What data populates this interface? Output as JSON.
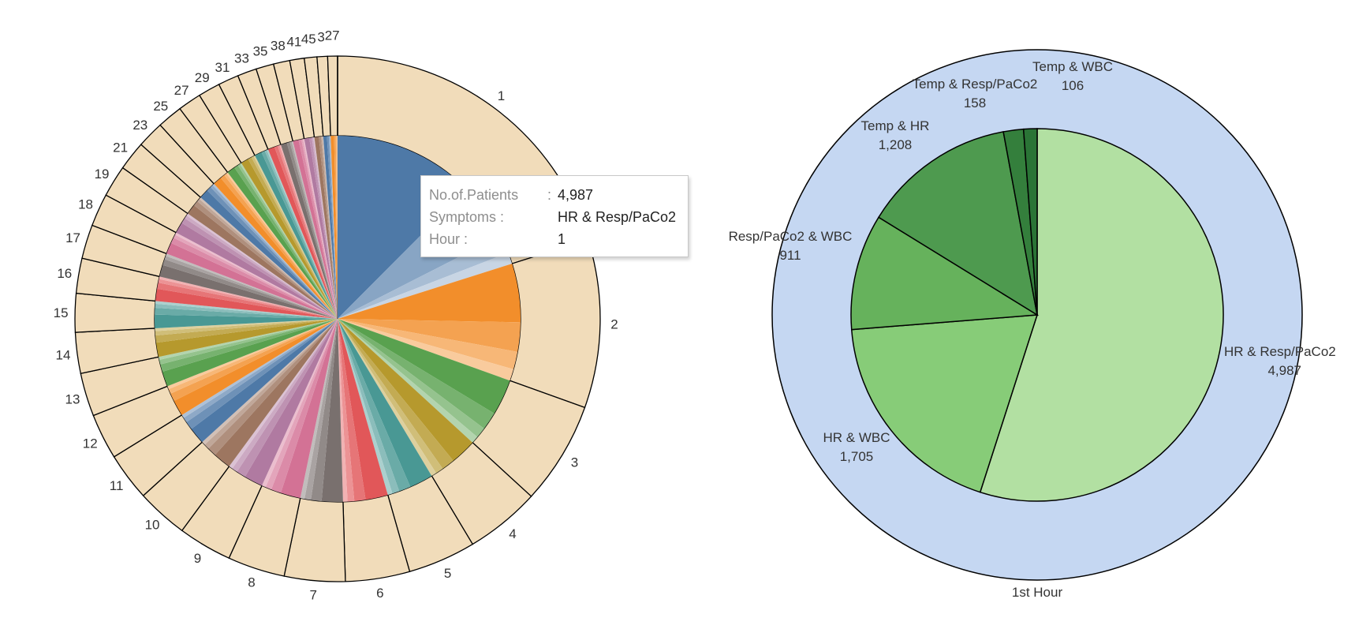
{
  "chart_data": [
    {
      "type": "pie",
      "inner_ring": "many symptom-combination slices per hour (tableau palette)",
      "outer_ring": {
        "categories": [
          "1",
          "2",
          "3",
          "4",
          "5",
          "6",
          "7",
          "8",
          "9",
          "10",
          "11",
          "12",
          "13",
          "14",
          "15",
          "16",
          "17",
          "18",
          "19",
          "21",
          "23",
          "25",
          "27",
          "29",
          "31",
          "33",
          "35",
          "38",
          "41",
          "45",
          "3",
          "27"
        ],
        "values": [
          14000,
          7200,
          4400,
          3200,
          2900,
          2750,
          2600,
          2450,
          2300,
          2200,
          2050,
          1950,
          1850,
          1750,
          1650,
          1500,
          1450,
          1400,
          1350,
          1250,
          1150,
          1080,
          1000,
          940,
          880,
          820,
          760,
          700,
          620,
          540,
          450,
          420
        ],
        "color": "#f1dcba"
      },
      "tooltip": {
        "rows": [
          {
            "key": "No.of.Patients",
            "sep": ":",
            "value": "4,987"
          },
          {
            "key": "Symptoms :",
            "sep": "",
            "value": "HR & Resp/PaCo2"
          },
          {
            "key": "Hour :",
            "sep": "",
            "value": "1"
          }
        ]
      }
    },
    {
      "type": "pie",
      "outer_label": "1st Hour",
      "outer_color": "#c5d7f2",
      "series": [
        {
          "name": "HR & Resp/PaCo2",
          "label": "4,987",
          "value": 4987,
          "color": "#b2e0a2"
        },
        {
          "name": "HR & WBC",
          "label": "1,705",
          "value": 1705,
          "color": "#87cc78"
        },
        {
          "name": "Resp/PaCo2 & WBC",
          "label": "911",
          "value": 911,
          "color": "#66b25c"
        },
        {
          "name": "Temp & HR",
          "label": "1,208",
          "value": 1208,
          "color": "#4e9a4f"
        },
        {
          "name": "Temp & Resp/PaCo2",
          "label": "158",
          "value": 158,
          "color": "#347f3c"
        },
        {
          "name": "Temp & WBC",
          "label": "106",
          "value": 106,
          "color": "#2a7436"
        }
      ]
    }
  ]
}
